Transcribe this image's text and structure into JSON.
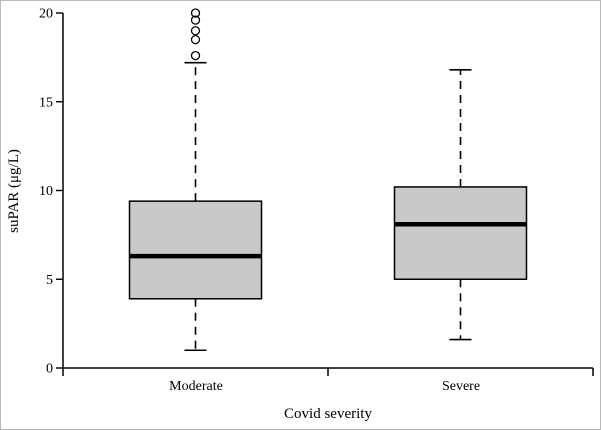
{
  "chart_data": {
    "type": "box",
    "title": "",
    "xlabel": "Covid severity",
    "ylabel": "suPAR (μg/L)",
    "ylim": [
      0,
      20
    ],
    "yticks": [
      0,
      5,
      10,
      15,
      20
    ],
    "categories": [
      "Moderate",
      "Severe"
    ],
    "series": [
      {
        "category": "Moderate",
        "whisker_low": 1.0,
        "q1": 3.9,
        "median": 6.3,
        "q3": 9.4,
        "whisker_high": 17.2,
        "outliers": [
          17.6,
          18.5,
          19.0,
          19.6,
          20.0
        ]
      },
      {
        "category": "Severe",
        "whisker_low": 1.6,
        "q1": 5.0,
        "median": 8.1,
        "q3": 10.2,
        "whisker_high": 16.8,
        "outliers": []
      }
    ],
    "box_fill": "#c9c9c9",
    "line_color": "#000000",
    "legend": "none",
    "grid": "off"
  }
}
